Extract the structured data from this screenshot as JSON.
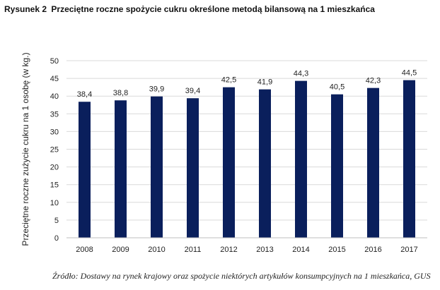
{
  "figure": {
    "label": "Rysunek",
    "number": "2",
    "title": "Przeciętne roczne spożycie cukru określone metodą bilansową na 1 mieszkańca"
  },
  "source_note": "Źródło: Dostawy na rynek krajowy oraz spożycie niektórych artykułów konsumpcyjnych na 1 mieszkańca, GUS",
  "chart_data": {
    "type": "bar",
    "categories": [
      "2008",
      "2009",
      "2010",
      "2011",
      "2012",
      "2013",
      "2014",
      "2015",
      "2016",
      "2017"
    ],
    "values": [
      38.4,
      38.8,
      39.9,
      39.4,
      42.5,
      41.9,
      44.3,
      40.5,
      42.3,
      44.5
    ],
    "value_labels": [
      "38,4",
      "38,8",
      "39,9",
      "39,4",
      "42,5",
      "41,9",
      "44,3",
      "40,5",
      "42,3",
      "44,5"
    ],
    "title": "Przeciętne roczne spożycie cukru określone metodą bilansową na 1 mieszkańca",
    "xlabel": "",
    "ylabel": "Przeciętne roczne zużycie cukru na 1 osobę (w kg.)",
    "ylim": [
      0,
      50
    ],
    "yticks": [
      0,
      5,
      10,
      15,
      20,
      25,
      30,
      35,
      40,
      45,
      50
    ],
    "grid": true,
    "legend": "none",
    "bar_color": "#0a1f5c",
    "grid_color": "#d9d9d9"
  }
}
